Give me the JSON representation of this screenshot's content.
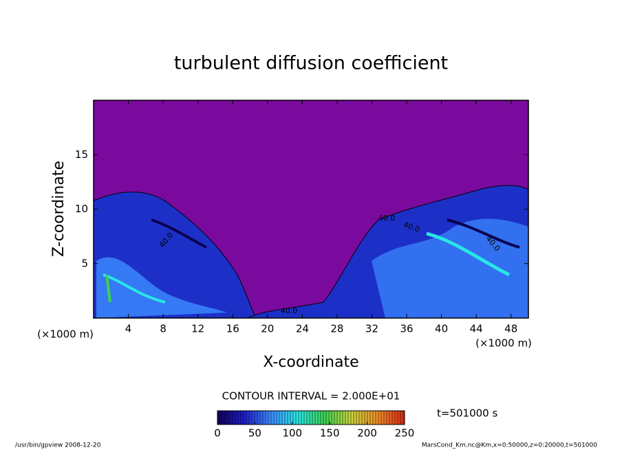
{
  "chart_data": {
    "type": "contour",
    "title": "turbulent diffusion coefficient",
    "x_label": "X-coordinate",
    "y_label": "Z-coordinate",
    "x_unit": "(×1000 m)",
    "y_unit": "(×1000 m)",
    "xlim": [
      0,
      50
    ],
    "xticks": [
      4,
      8,
      12,
      16,
      20,
      24,
      28,
      32,
      36,
      40,
      44,
      48
    ],
    "ylim": [
      0,
      20
    ],
    "yticks": [
      5,
      10,
      15
    ],
    "contour_interval": "CONTOUR INTERVAL = 2.000E+01",
    "contour_labels": [
      "40.0",
      "40.0",
      "40.0",
      "40.0",
      "40.0"
    ],
    "colorbar": {
      "lim": [
        0,
        250
      ],
      "ticks": [
        0,
        50,
        100,
        150,
        200,
        250
      ],
      "colors": [
        "#14005a",
        "#1e1ec8",
        "#3c8cff",
        "#28e6e6",
        "#3cd250",
        "#c8d23c",
        "#f08c28",
        "#dc2814"
      ]
    },
    "time_label": "t=501000 s",
    "footer_left": "/usr/bin/gpview   2008-12-20",
    "footer_right": "MarsCond_Km.nc@Km,x=0:50000,z=0:20000,t=501000"
  }
}
